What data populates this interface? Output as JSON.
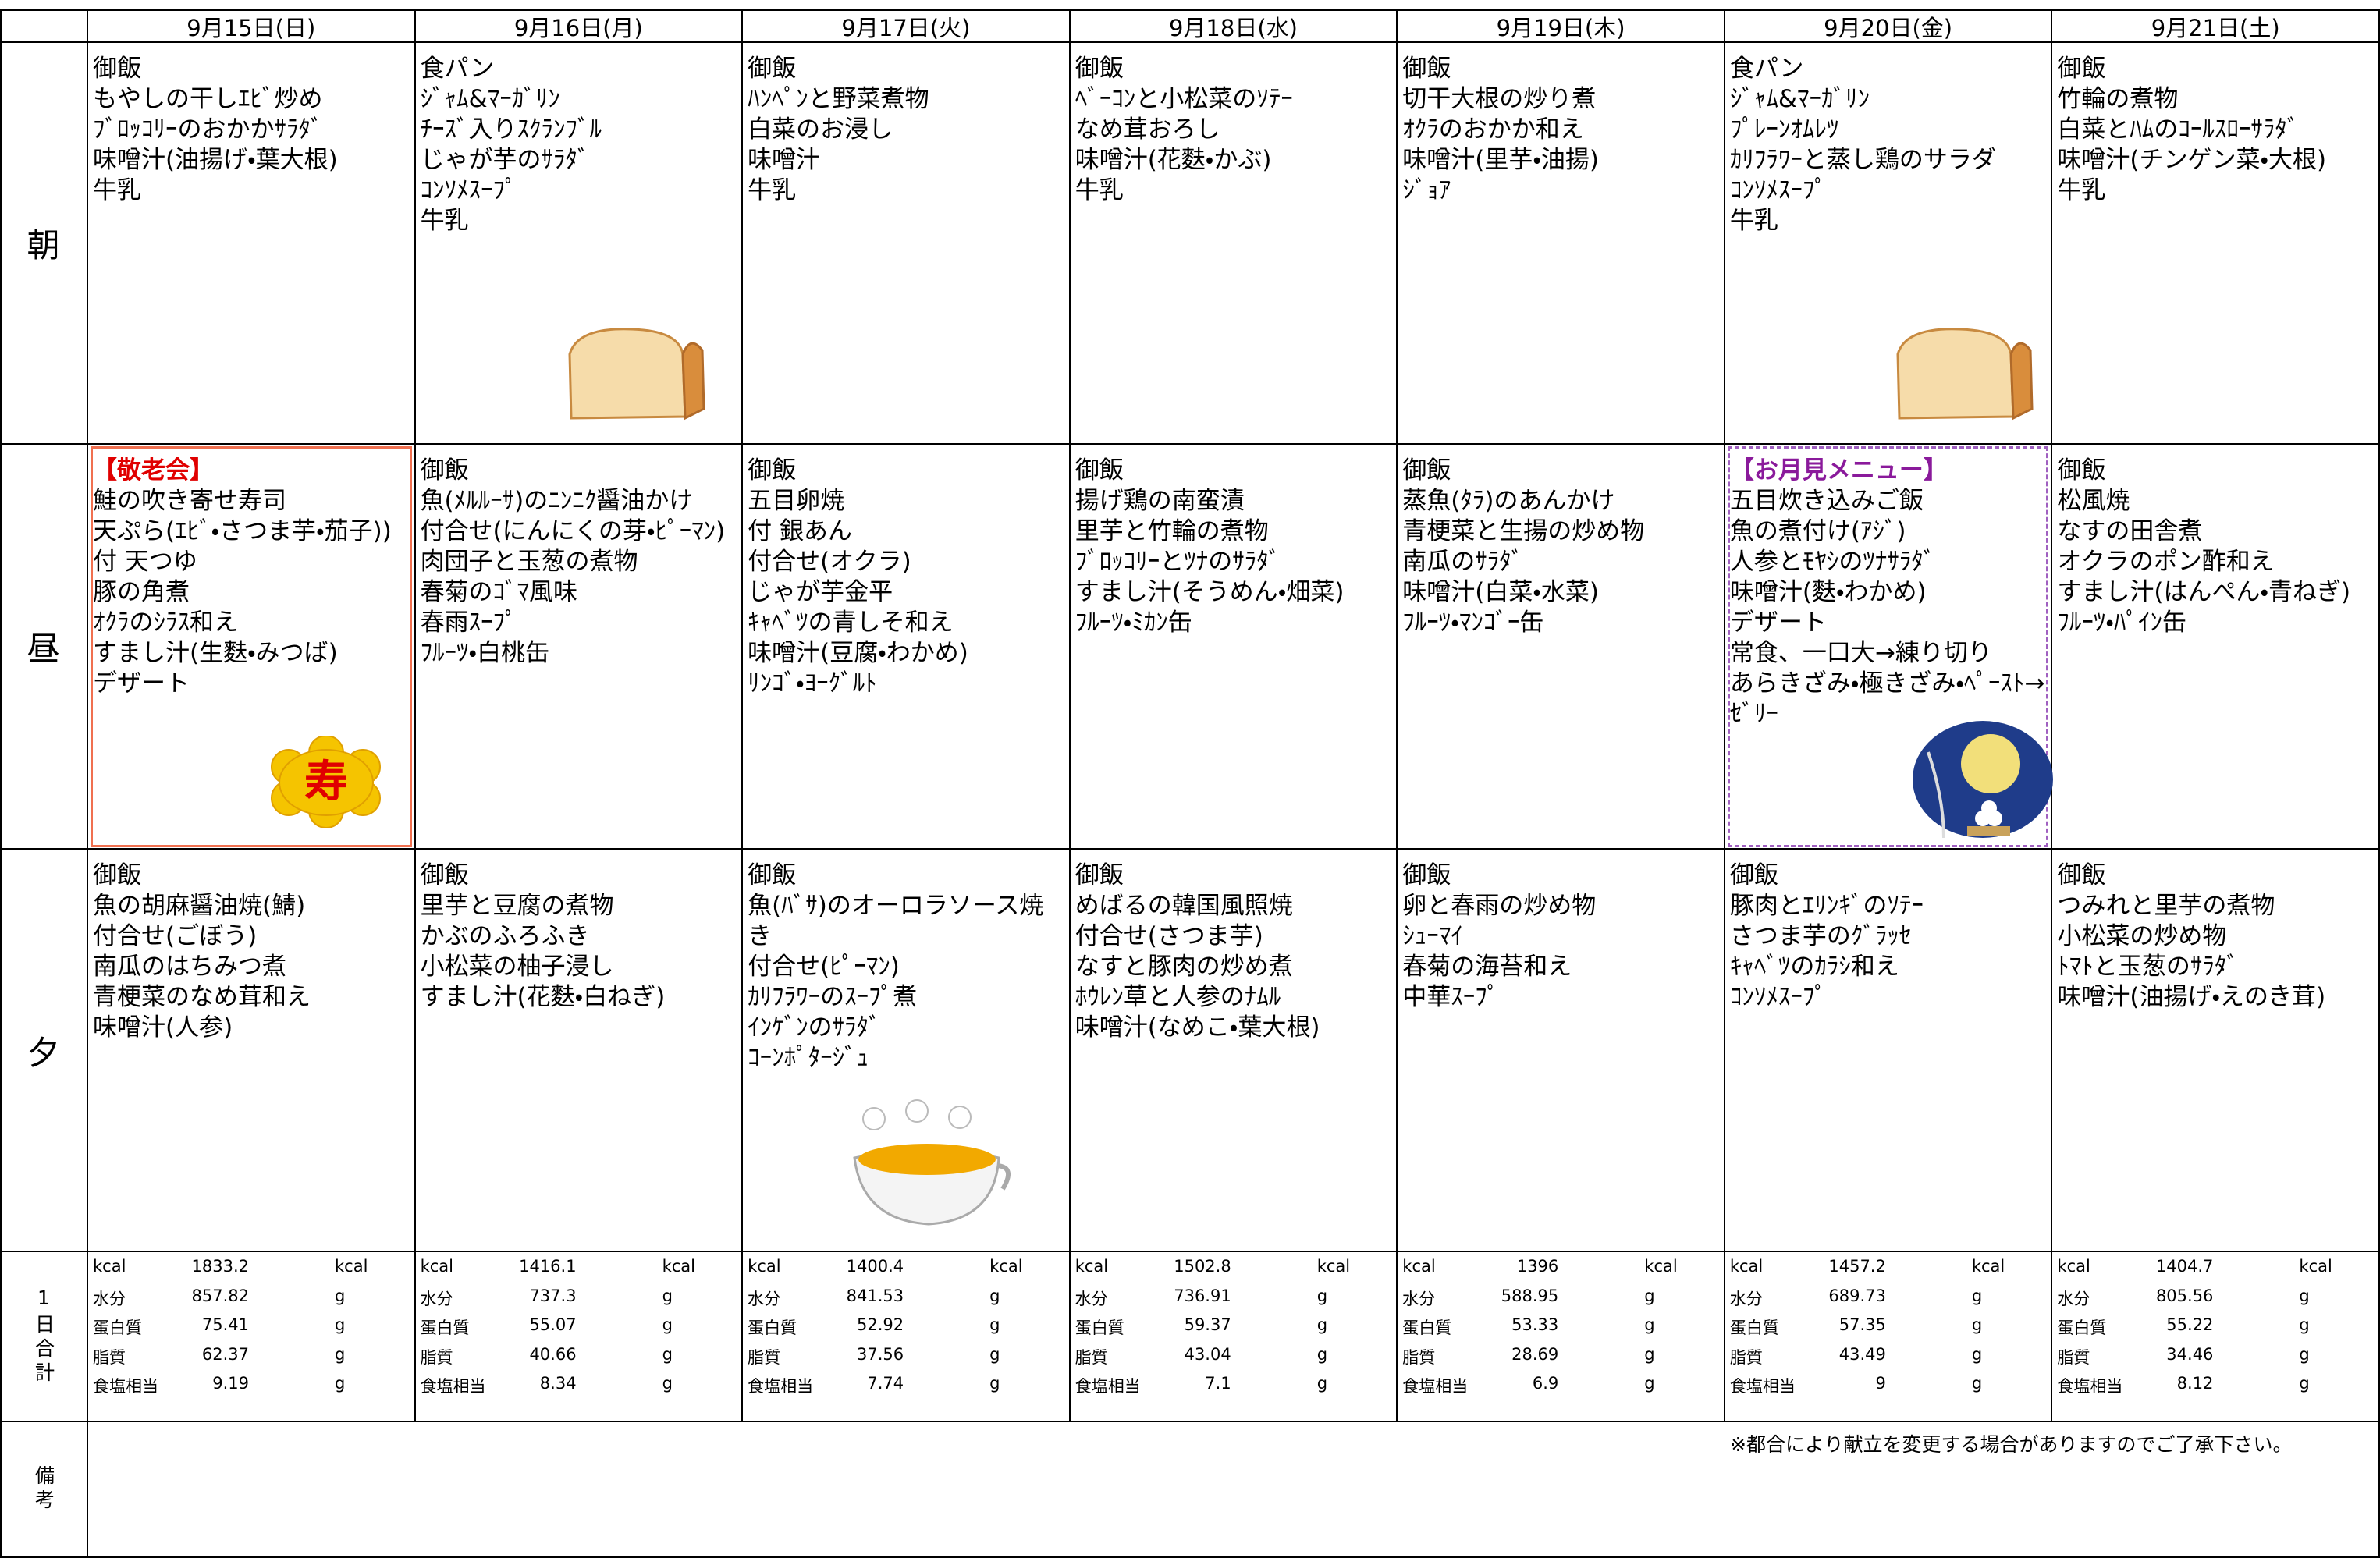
{
  "header": {
    "dates": [
      "9月15日(日)",
      "9月16日(月)",
      "9月17日(火)",
      "9月18日(水)",
      "9月19日(木)",
      "9月20日(金)",
      "9月21日(土)"
    ]
  },
  "row_labels": {
    "breakfast": "朝",
    "lunch": "昼",
    "dinner": "夕",
    "total": "1日合計",
    "notes": "備考"
  },
  "nutrients": [
    {
      "label": "kcal",
      "unit": "kcal"
    },
    {
      "label": "水分",
      "unit": "g"
    },
    {
      "label": "蛋白質",
      "unit": "g"
    },
    {
      "label": "脂質",
      "unit": "g"
    },
    {
      "label": "食塩相当",
      "unit": "g"
    }
  ],
  "days": [
    {
      "breakfast": [
        "御飯",
        "もやしの干しｴﾋﾞ炒め",
        "ﾌﾞﾛｯｺﾘｰのおかかｻﾗﾀﾞ",
        "味噌汁(油揚げ・葉大根)",
        "牛乳"
      ],
      "lunch": {
        "heading": "【敬老会】",
        "items": [
          "鮭の吹き寄せ寿司",
          "天ぷら(ｴﾋﾞ・さつま芋・茄子))",
          "付 天つゆ",
          "豚の角煮",
          "ｵｸﾗのｼﾗｽ和え",
          "すまし汁(生麩・みつば)",
          "デザート"
        ]
      },
      "dinner": [
        "御飯",
        "魚の胡麻醤油焼(鯖)",
        "付合せ(ごぼう)",
        "南瓜のはちみつ煮",
        "青梗菜のなめ茸和え",
        "味噌汁(人参)"
      ],
      "nutrition": [
        1833.2,
        857.82,
        75.41,
        62.37,
        9.19
      ]
    },
    {
      "breakfast": [
        "食パン",
        "ｼﾞｬﾑ&ﾏｰｶﾞﾘﾝ",
        "ﾁｰｽﾞ入りｽｸﾗﾝﾌﾞﾙ",
        "じゃが芋のｻﾗﾀﾞ",
        "ｺﾝｿﾒｽｰﾌﾟ",
        "牛乳"
      ],
      "lunch": {
        "items": [
          "御飯",
          "魚(ﾒﾙﾙｰｻ)のﾆﾝﾆｸ醤油かけ",
          "付合せ(にんにくの芽・ﾋﾟｰﾏﾝ)",
          "肉団子と玉葱の煮物",
          "春菊のｺﾞﾏ風味",
          "春雨ｽｰﾌﾟ",
          "ﾌﾙｰﾂ・白桃缶"
        ]
      },
      "dinner": [
        "御飯",
        "里芋と豆腐の煮物",
        "かぶのふろふき",
        "小松菜の柚子浸し",
        "すまし汁(花麩・白ねぎ)"
      ],
      "nutrition": [
        1416.1,
        737.3,
        55.07,
        40.66,
        8.34
      ]
    },
    {
      "breakfast": [
        "御飯",
        "ﾊﾝﾍﾟﾝと野菜煮物",
        "白菜のお浸し",
        "味噌汁",
        "牛乳"
      ],
      "lunch": {
        "items": [
          "御飯",
          "五目卵焼",
          "付 銀あん",
          "付合せ(オクラ)",
          "じゃが芋金平",
          "ｷｬﾍﾞﾂの青しそ和え",
          "味噌汁(豆腐・わかめ)",
          "ﾘﾝｺﾞ・ﾖｰｸﾞﾙﾄ"
        ]
      },
      "dinner": [
        "御飯",
        "魚(ﾊﾞｻ)のオーロラソース焼き",
        "付合せ(ﾋﾟｰﾏﾝ)",
        "ｶﾘﾌﾗﾜｰのｽｰﾌﾟ煮",
        "ｲﾝｹﾞﾝのｻﾗﾀﾞ",
        "ｺｰﾝﾎﾟﾀｰｼﾞｭ"
      ],
      "nutrition": [
        1400.4,
        841.53,
        52.92,
        37.56,
        7.74
      ]
    },
    {
      "breakfast": [
        "御飯",
        "ﾍﾞｰｺﾝと小松菜のｿﾃｰ",
        "なめ茸おろし",
        "味噌汁(花麩・かぶ)",
        "牛乳"
      ],
      "lunch": {
        "items": [
          "御飯",
          "揚げ鶏の南蛮漬",
          "里芋と竹輪の煮物",
          "ﾌﾞﾛｯｺﾘｰとﾂﾅのｻﾗﾀﾞ",
          "すまし汁(そうめん・畑菜)",
          "ﾌﾙｰﾂ・ﾐｶﾝ缶"
        ]
      },
      "dinner": [
        "御飯",
        "めばるの韓国風照焼",
        "付合せ(さつま芋)",
        "なすと豚肉の炒め煮",
        "ﾎｳﾚﾝ草と人参のﾅﾑﾙ",
        "味噌汁(なめこ・葉大根)"
      ],
      "nutrition": [
        1502.8,
        736.91,
        59.37,
        43.04,
        7.1
      ]
    },
    {
      "breakfast": [
        "御飯",
        "切干大根の炒り煮",
        "ｵｸﾗのおかか和え",
        "味噌汁(里芋・油揚)",
        "ｼﾞｮｱ"
      ],
      "lunch": {
        "items": [
          "御飯",
          "蒸魚(ﾀﾗ)のあんかけ",
          "青梗菜と生揚の炒め物",
          "南瓜のｻﾗﾀﾞ",
          "味噌汁(白菜・水菜)",
          "ﾌﾙｰﾂ・ﾏﾝｺﾞｰ缶"
        ]
      },
      "dinner": [
        "御飯",
        "卵と春雨の炒め物",
        "ｼｭｰﾏｲ",
        "春菊の海苔和え",
        "中華ｽｰﾌﾟ"
      ],
      "nutrition": [
        1396,
        588.95,
        53.33,
        28.69,
        6.9
      ]
    },
    {
      "breakfast": [
        "食パン",
        "ｼﾞｬﾑ&ﾏｰｶﾞﾘﾝ",
        "ﾌﾟﾚｰﾝｵﾑﾚﾂ",
        "ｶﾘﾌﾗﾜｰと蒸し鶏のサラダ",
        "ｺﾝｿﾒｽｰﾌﾟ",
        "牛乳"
      ],
      "lunch": {
        "heading": "【お月見メニュー】",
        "items": [
          "五目炊き込みご飯",
          "魚の煮付け(ｱｼﾞ)",
          "人参とﾓﾔｼのﾂﾅｻﾗﾀﾞ",
          "味噌汁(麩・わかめ)",
          "デザート",
          "常食、一口大→練り切り",
          "あらきざみ・極きざみ・ﾍﾟｰｽﾄ→ｾﾞﾘｰ"
        ]
      },
      "dinner": [
        "御飯",
        "豚肉とｴﾘﾝｷﾞのｿﾃｰ",
        "さつま芋のｸﾞﾗｯｾ",
        "ｷｬﾍﾞﾂのｶﾗｼ和え",
        "ｺﾝｿﾒｽｰﾌﾟ"
      ],
      "nutrition": [
        1457.2,
        689.73,
        57.35,
        43.49,
        9
      ]
    },
    {
      "breakfast": [
        "御飯",
        "竹輪の煮物",
        "白菜とﾊﾑのｺｰﾙｽﾛｰｻﾗﾀﾞ",
        "味噌汁(チンゲン菜・大根)",
        "牛乳"
      ],
      "lunch": {
        "items": [
          "御飯",
          "松風焼",
          "なすの田舎煮",
          "オクラのポン酢和え",
          "すまし汁(はんぺん・青ねぎ)",
          "ﾌﾙｰﾂ・ﾊﾟｲﾝ缶"
        ]
      },
      "dinner": [
        "御飯",
        "つみれと里芋の煮物",
        "小松菜の炒め物",
        "ﾄﾏﾄと玉葱のｻﾗﾀﾞ",
        "味噌汁(油揚げ・えのき茸)"
      ],
      "nutrition": [
        1404.7,
        805.56,
        55.22,
        34.46,
        8.12
      ]
    }
  ],
  "note": "※都合により献立を変更する場合がありますのでご了承下さい。"
}
